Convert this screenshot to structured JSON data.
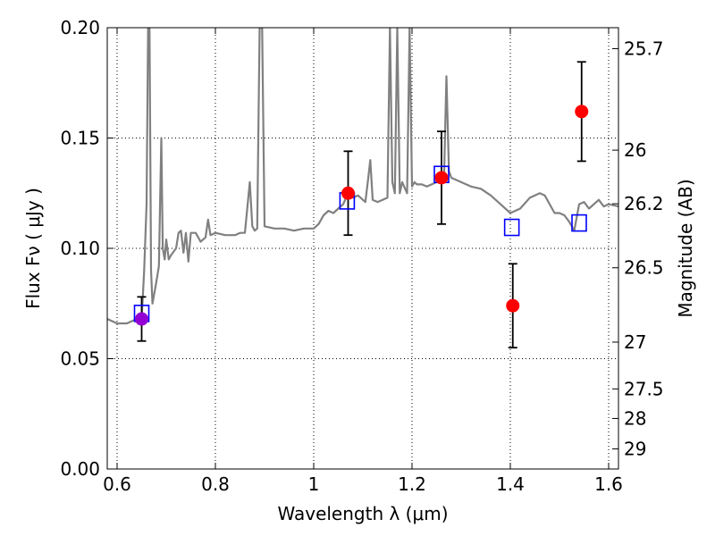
{
  "chart_data": {
    "type": "scatter",
    "title": "",
    "xlabel": "Wavelength  λ (μm)",
    "ylabel": "Flux  Fν  ( μJy )",
    "y2label": "Magnitude (AB)",
    "xlim": [
      0.58,
      1.62
    ],
    "ylim": [
      0.0,
      0.2
    ],
    "grid": true,
    "x_ticks": [
      0.6,
      0.8,
      1.0,
      1.2,
      1.4,
      1.6
    ],
    "x_tick_labels": [
      "0.6",
      "0.8",
      "1",
      "1.2",
      "1.4",
      "1.6"
    ],
    "y_ticks": [
      0.0,
      0.05,
      0.1,
      0.15,
      0.2
    ],
    "y_tick_labels": [
      "0.00",
      "0.05",
      "0.10",
      "0.15",
      "0.20"
    ],
    "y2_ticks": [
      {
        "label": "25.7",
        "flux": 0.1905
      },
      {
        "label": "26",
        "flux": 0.1445
      },
      {
        "label": "26.2",
        "flux": 0.1202
      },
      {
        "label": "26.5",
        "flux": 0.0912
      },
      {
        "label": "27",
        "flux": 0.0575
      },
      {
        "label": "27.5",
        "flux": 0.0363
      },
      {
        "label": "28",
        "flux": 0.0229
      },
      {
        "label": "29",
        "flux": 0.0091
      }
    ],
    "series": [
      {
        "kind": "line",
        "color": "#808080",
        "points": [
          [
            0.58,
            0.068
          ],
          [
            0.59,
            0.067
          ],
          [
            0.6,
            0.066
          ],
          [
            0.61,
            0.066
          ],
          [
            0.62,
            0.066
          ],
          [
            0.63,
            0.067
          ],
          [
            0.64,
            0.068
          ],
          [
            0.65,
            0.068
          ],
          [
            0.655,
            0.09
          ],
          [
            0.66,
            0.12
          ],
          [
            0.663,
            0.2
          ],
          [
            0.666,
            0.2
          ],
          [
            0.669,
            0.09
          ],
          [
            0.672,
            0.075
          ],
          [
            0.676,
            0.08
          ],
          [
            0.68,
            0.085
          ],
          [
            0.685,
            0.092
          ],
          [
            0.69,
            0.15
          ],
          [
            0.693,
            0.1
          ],
          [
            0.697,
            0.095
          ],
          [
            0.7,
            0.104
          ],
          [
            0.705,
            0.095
          ],
          [
            0.71,
            0.097
          ],
          [
            0.72,
            0.1
          ],
          [
            0.725,
            0.107
          ],
          [
            0.73,
            0.108
          ],
          [
            0.735,
            0.098
          ],
          [
            0.74,
            0.107
          ],
          [
            0.745,
            0.094
          ],
          [
            0.75,
            0.107
          ],
          [
            0.76,
            0.107
          ],
          [
            0.77,
            0.103
          ],
          [
            0.78,
            0.105
          ],
          [
            0.785,
            0.113
          ],
          [
            0.79,
            0.106
          ],
          [
            0.8,
            0.107
          ],
          [
            0.82,
            0.106
          ],
          [
            0.84,
            0.106
          ],
          [
            0.85,
            0.107
          ],
          [
            0.86,
            0.107
          ],
          [
            0.87,
            0.13
          ],
          [
            0.875,
            0.11
          ],
          [
            0.88,
            0.108
          ],
          [
            0.885,
            0.109
          ],
          [
            0.89,
            0.2
          ],
          [
            0.895,
            0.2
          ],
          [
            0.9,
            0.11
          ],
          [
            0.92,
            0.109
          ],
          [
            0.94,
            0.109
          ],
          [
            0.96,
            0.108
          ],
          [
            0.98,
            0.109
          ],
          [
            1.0,
            0.109
          ],
          [
            1.01,
            0.111
          ],
          [
            1.02,
            0.115
          ],
          [
            1.03,
            0.117
          ],
          [
            1.04,
            0.116
          ],
          [
            1.05,
            0.118
          ],
          [
            1.06,
            0.12
          ],
          [
            1.07,
            0.125
          ],
          [
            1.08,
            0.123
          ],
          [
            1.09,
            0.124
          ],
          [
            1.1,
            0.122
          ],
          [
            1.105,
            0.121
          ],
          [
            1.11,
            0.13
          ],
          [
            1.115,
            0.14
          ],
          [
            1.12,
            0.122
          ],
          [
            1.13,
            0.121
          ],
          [
            1.14,
            0.122
          ],
          [
            1.15,
            0.123
          ],
          [
            1.155,
            0.2
          ],
          [
            1.16,
            0.13
          ],
          [
            1.165,
            0.125
          ],
          [
            1.17,
            0.2
          ],
          [
            1.175,
            0.125
          ],
          [
            1.18,
            0.13
          ],
          [
            1.19,
            0.125
          ],
          [
            1.195,
            0.2
          ],
          [
            1.2,
            0.128
          ],
          [
            1.205,
            0.13
          ],
          [
            1.21,
            0.129
          ],
          [
            1.22,
            0.129
          ],
          [
            1.23,
            0.128
          ],
          [
            1.24,
            0.129
          ],
          [
            1.25,
            0.13
          ],
          [
            1.26,
            0.132
          ],
          [
            1.265,
            0.13
          ],
          [
            1.27,
            0.178
          ],
          [
            1.275,
            0.135
          ],
          [
            1.28,
            0.132
          ],
          [
            1.3,
            0.13
          ],
          [
            1.32,
            0.128
          ],
          [
            1.34,
            0.127
          ],
          [
            1.36,
            0.124
          ],
          [
            1.38,
            0.12
          ],
          [
            1.4,
            0.116
          ],
          [
            1.41,
            0.117
          ],
          [
            1.42,
            0.118
          ],
          [
            1.44,
            0.123
          ],
          [
            1.46,
            0.125
          ],
          [
            1.47,
            0.124
          ],
          [
            1.48,
            0.12
          ],
          [
            1.49,
            0.116
          ],
          [
            1.5,
            0.116
          ],
          [
            1.51,
            0.115
          ],
          [
            1.52,
            0.112
          ],
          [
            1.53,
            0.108
          ],
          [
            1.54,
            0.12
          ],
          [
            1.55,
            0.121
          ],
          [
            1.56,
            0.118
          ],
          [
            1.57,
            0.12
          ],
          [
            1.58,
            0.122
          ],
          [
            1.59,
            0.119
          ],
          [
            1.6,
            0.12
          ],
          [
            1.62,
            0.119
          ]
        ]
      },
      {
        "kind": "points",
        "color": "#ff0000",
        "points": [
          {
            "x": 1.07,
            "y": 0.125,
            "err": 0.019
          },
          {
            "x": 1.26,
            "y": 0.132,
            "err": 0.021
          },
          {
            "x": 1.405,
            "y": 0.074,
            "err": 0.019
          },
          {
            "x": 1.545,
            "y": 0.162,
            "err": 0.0225
          }
        ]
      },
      {
        "kind": "points",
        "color": "#9400d3",
        "points": [
          {
            "x": 0.65,
            "y": 0.068,
            "err": 0.01
          }
        ]
      },
      {
        "kind": "squares",
        "color": "#0000ff",
        "points": [
          {
            "x": 0.65,
            "y": 0.0705
          },
          {
            "x": 1.068,
            "y": 0.1215
          },
          {
            "x": 1.26,
            "y": 0.1335
          },
          {
            "x": 1.403,
            "y": 0.1095
          },
          {
            "x": 1.54,
            "y": 0.1115
          }
        ]
      }
    ]
  }
}
